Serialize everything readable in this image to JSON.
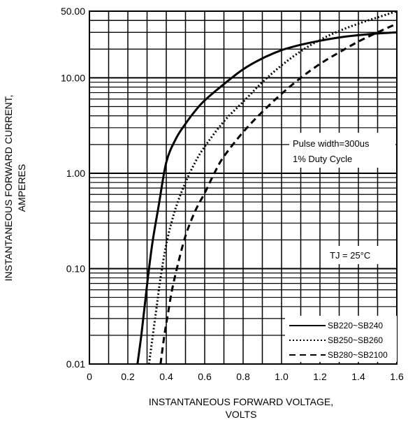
{
  "chart_data": {
    "type": "line",
    "title": "",
    "xlabel": [
      "INSTANTANEOUS FORWARD VOLTAGE,",
      "VOLTS"
    ],
    "ylabel": [
      "INSTANTANEOUS FORWARD CURRENT,",
      "AMPERES"
    ],
    "xlim": [
      0,
      1.6
    ],
    "ylim": [
      0.01,
      50
    ],
    "yscale": "log",
    "grid": true,
    "x_ticks": [
      "0",
      "0.2",
      "0.4",
      "0.6",
      "0.8",
      "1.0",
      "1.2",
      "1.4",
      "1.6"
    ],
    "y_ticks": [
      {
        "value": 0.01,
        "label": "0.01"
      },
      {
        "value": 0.1,
        "label": "0.10"
      },
      {
        "value": 1,
        "label": "1.00"
      },
      {
        "value": 10,
        "label": "10.00"
      },
      {
        "value": 50,
        "label": "50.00"
      }
    ],
    "annotations": [
      "Pulse width=300us",
      "1% Duty Cycle",
      "TJ = 25°C"
    ],
    "legend_position": "bottom-right",
    "series": [
      {
        "name": "SB220~SB240",
        "style": "solid",
        "x": [
          0.25,
          0.27,
          0.29,
          0.31,
          0.33,
          0.36,
          0.4,
          0.45,
          0.5,
          0.55,
          0.6,
          0.7,
          0.8,
          0.9,
          1.0,
          1.1,
          1.2,
          1.3,
          1.4,
          1.5,
          1.6
        ],
        "y": [
          0.01,
          0.02,
          0.045,
          0.1,
          0.2,
          0.45,
          1.3,
          2.3,
          3.3,
          4.5,
          5.8,
          8.6,
          12.3,
          16.0,
          19.5,
          22.2,
          24.5,
          26.5,
          28.0,
          29.2,
          30.0
        ]
      },
      {
        "name": "SB250~SB260",
        "style": "dotted",
        "x": [
          0.31,
          0.33,
          0.35,
          0.37,
          0.4,
          0.43,
          0.46,
          0.5,
          0.55,
          0.6,
          0.7,
          0.8,
          0.9,
          1.0,
          1.1,
          1.2,
          1.3,
          1.4,
          1.5,
          1.6
        ],
        "y": [
          0.01,
          0.02,
          0.04,
          0.08,
          0.18,
          0.32,
          0.5,
          0.8,
          1.3,
          1.9,
          3.5,
          5.6,
          9.0,
          13.5,
          19.0,
          25.0,
          31.0,
          37.0,
          43.0,
          50.0
        ]
      },
      {
        "name": "SB280~SB2100",
        "style": "dashed",
        "x": [
          0.37,
          0.39,
          0.41,
          0.43,
          0.46,
          0.5,
          0.55,
          0.6,
          0.65,
          0.7,
          0.8,
          0.9,
          1.0,
          1.1,
          1.2,
          1.3,
          1.4,
          1.5,
          1.6
        ],
        "y": [
          0.01,
          0.02,
          0.035,
          0.06,
          0.11,
          0.22,
          0.4,
          0.62,
          1.0,
          1.5,
          2.7,
          4.4,
          6.8,
          10.0,
          14.0,
          18.5,
          24.0,
          30.0,
          37.0
        ]
      }
    ]
  }
}
